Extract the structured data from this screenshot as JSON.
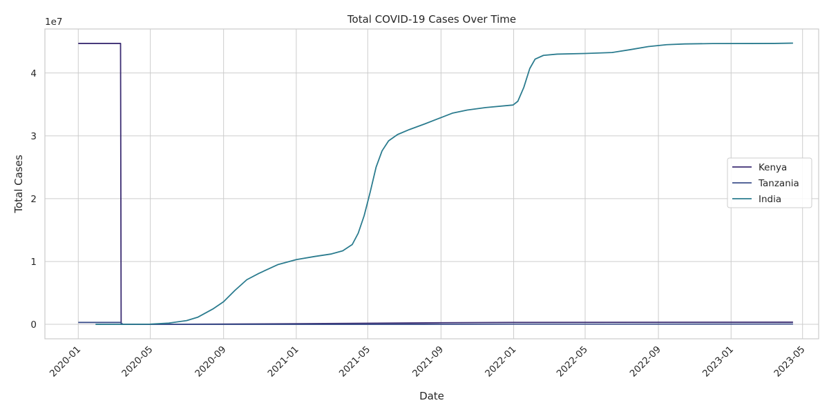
{
  "chart_data": {
    "type": "line",
    "title": "Total COVID-19 Cases Over Time",
    "xlabel": "Date",
    "ylabel": "Total Cases",
    "y_offset_label": "1e7",
    "y_scale": 10000000,
    "grid": true,
    "legend_position": "center-right",
    "xlim": [
      "2019-11-06",
      "2023-05-28"
    ],
    "ylim": [
      -2300000,
      47000000
    ],
    "x_ticks": [
      "2020-01",
      "2020-05",
      "2020-09",
      "2021-01",
      "2021-05",
      "2021-09",
      "2022-01",
      "2022-05",
      "2022-09",
      "2023-01",
      "2023-05"
    ],
    "y_ticks": [
      0,
      10000000,
      20000000,
      30000000,
      40000000
    ],
    "y_tick_labels": [
      "0",
      "1",
      "2",
      "3",
      "4"
    ],
    "colors": {
      "Kenya": "#3b2c72",
      "Tanzania": "#3c4f8a",
      "India": "#2a7b8e",
      "grid": "#cccccc",
      "axes": "#cccccc"
    },
    "series": [
      {
        "name": "Kenya",
        "points": [
          [
            "2020-01-01",
            44700000
          ],
          [
            "2020-03-12",
            44700000
          ],
          [
            "2020-03-13",
            1
          ],
          [
            "2020-04-01",
            100
          ],
          [
            "2020-07-01",
            10000
          ],
          [
            "2021-01-01",
            100000
          ],
          [
            "2021-09-01",
            250000
          ],
          [
            "2022-01-01",
            310000
          ],
          [
            "2023-04-15",
            343000
          ]
        ]
      },
      {
        "name": "Tanzania",
        "points": [
          [
            "2020-01-01",
            300000
          ],
          [
            "2020-03-12",
            300000
          ],
          [
            "2020-03-16",
            1
          ],
          [
            "2020-06-01",
            509
          ],
          [
            "2021-08-01",
            1367
          ],
          [
            "2022-01-01",
            33000
          ],
          [
            "2023-04-15",
            42900
          ]
        ]
      },
      {
        "name": "India",
        "points": [
          [
            "2020-01-30",
            1
          ],
          [
            "2020-04-01",
            2000
          ],
          [
            "2020-05-01",
            35000
          ],
          [
            "2020-06-01",
            200000
          ],
          [
            "2020-07-01",
            600000
          ],
          [
            "2020-07-20",
            1150000
          ],
          [
            "2020-08-15",
            2500000
          ],
          [
            "2020-09-01",
            3600000
          ],
          [
            "2020-09-20",
            5400000
          ],
          [
            "2020-10-10",
            7100000
          ],
          [
            "2020-10-30",
            8100000
          ],
          [
            "2020-12-01",
            9500000
          ],
          [
            "2021-01-01",
            10300000
          ],
          [
            "2021-02-01",
            10800000
          ],
          [
            "2021-03-01",
            11200000
          ],
          [
            "2021-03-20",
            11700000
          ],
          [
            "2021-04-05",
            12700000
          ],
          [
            "2021-04-15",
            14500000
          ],
          [
            "2021-04-25",
            17300000
          ],
          [
            "2021-05-05",
            21000000
          ],
          [
            "2021-05-15",
            25000000
          ],
          [
            "2021-05-25",
            27600000
          ],
          [
            "2021-06-05",
            29200000
          ],
          [
            "2021-06-20",
            30200000
          ],
          [
            "2021-07-10",
            31000000
          ],
          [
            "2021-08-05",
            31900000
          ],
          [
            "2021-09-01",
            32900000
          ],
          [
            "2021-09-20",
            33600000
          ],
          [
            "2021-10-15",
            34100000
          ],
          [
            "2021-11-15",
            34500000
          ],
          [
            "2021-12-31",
            34900000
          ],
          [
            "2022-01-08",
            35500000
          ],
          [
            "2022-01-18",
            37700000
          ],
          [
            "2022-01-28",
            40700000
          ],
          [
            "2022-02-06",
            42200000
          ],
          [
            "2022-02-20",
            42800000
          ],
          [
            "2022-03-15",
            43000000
          ],
          [
            "2022-05-01",
            43100000
          ],
          [
            "2022-06-15",
            43250000
          ],
          [
            "2022-07-15",
            43700000
          ],
          [
            "2022-08-15",
            44200000
          ],
          [
            "2022-09-15",
            44500000
          ],
          [
            "2022-10-15",
            44620000
          ],
          [
            "2022-12-01",
            44680000
          ],
          [
            "2023-02-01",
            44690000
          ],
          [
            "2023-03-15",
            44700000
          ],
          [
            "2023-04-15",
            44750000
          ]
        ]
      }
    ]
  }
}
